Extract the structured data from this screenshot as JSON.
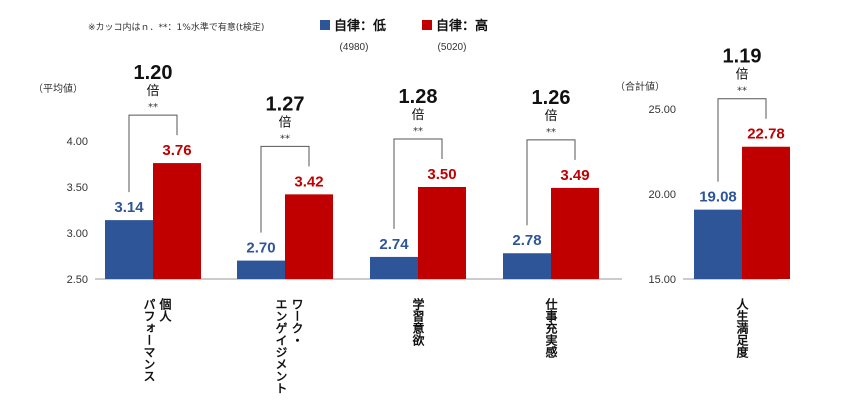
{
  "note": "※カッコ内はｎ．**：1%水準で有意(t検定)",
  "colors": {
    "low": "#2E5597",
    "high": "#C00000"
  },
  "legend": [
    {
      "label": "自律：低",
      "n": "(4980)"
    },
    {
      "label": "自律：高",
      "n": "(5020)"
    }
  ],
  "chart_data": [
    {
      "type": "bar",
      "ylabel": "（平均値）",
      "ylim": [
        2.5,
        4.0
      ],
      "yticks": [
        "2.50",
        "3.00",
        "3.50",
        "4.00"
      ],
      "categories": [
        {
          "label_lines": [
            "個人",
            "パフォーマンス"
          ]
        },
        {
          "label_lines": [
            "ワーク・",
            "エンゲイジメント"
          ]
        },
        {
          "label_lines": [
            "学習意欲"
          ]
        },
        {
          "label_lines": [
            "仕事充実感"
          ]
        }
      ],
      "series": [
        {
          "values": [
            3.14,
            2.7,
            2.74,
            2.78
          ],
          "labels": [
            "3.14",
            "2.70",
            "2.74",
            "2.78"
          ]
        },
        {
          "values": [
            3.76,
            3.42,
            3.5,
            3.49
          ],
          "labels": [
            "3.76",
            "3.42",
            "3.50",
            "3.49"
          ]
        }
      ],
      "ratios": [
        "1.20",
        "1.27",
        "1.28",
        "1.26"
      ],
      "ratio_unit": "倍",
      "significance": [
        "**",
        "**",
        "**",
        "**"
      ]
    },
    {
      "type": "bar",
      "ylabel": "（合計値）",
      "ylim": [
        15.0,
        25.0
      ],
      "yticks": [
        "15.00",
        "20.00",
        "25.00"
      ],
      "categories": [
        {
          "label_lines": [
            "人生満足度"
          ]
        }
      ],
      "series": [
        {
          "values": [
            19.08
          ],
          "labels": [
            "19.08"
          ]
        },
        {
          "values": [
            22.78
          ],
          "labels": [
            "22.78"
          ]
        }
      ],
      "ratios": [
        "1.19"
      ],
      "ratio_unit": "倍",
      "significance": [
        "**"
      ]
    }
  ]
}
